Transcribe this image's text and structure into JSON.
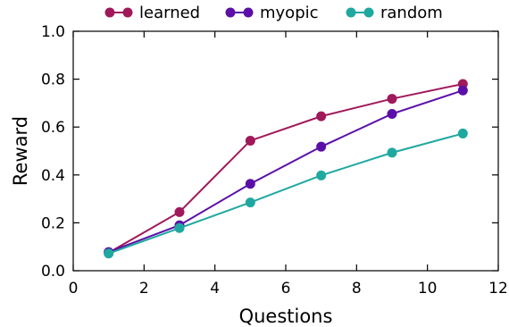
{
  "chart_data": {
    "type": "line",
    "xlabel": "Questions",
    "ylabel": "Reward",
    "xlim": [
      0,
      12
    ],
    "ylim": [
      0.0,
      1.0
    ],
    "x_ticks": [
      "0",
      "2",
      "4",
      "6",
      "8",
      "10",
      "12"
    ],
    "y_ticks": [
      "0.0",
      "0.2",
      "0.4",
      "0.6",
      "0.8",
      "1.0"
    ],
    "x_tick_values": [
      0,
      2,
      4,
      6,
      8,
      10,
      12
    ],
    "y_tick_values": [
      0.0,
      0.2,
      0.4,
      0.6,
      0.8,
      1.0
    ],
    "grid": false,
    "legend_position": "top",
    "x": [
      1,
      3,
      5,
      7,
      9,
      11
    ],
    "series": [
      {
        "name": "learned",
        "color": "#a0195a",
        "values": [
          0.075,
          0.245,
          0.543,
          0.645,
          0.718,
          0.78
        ]
      },
      {
        "name": "myopic",
        "color": "#5b0fa8",
        "values": [
          0.078,
          0.19,
          0.363,
          0.518,
          0.655,
          0.753
        ]
      },
      {
        "name": "random",
        "color": "#1fa8a0",
        "values": [
          0.072,
          0.178,
          0.285,
          0.398,
          0.493,
          0.573
        ]
      }
    ]
  }
}
